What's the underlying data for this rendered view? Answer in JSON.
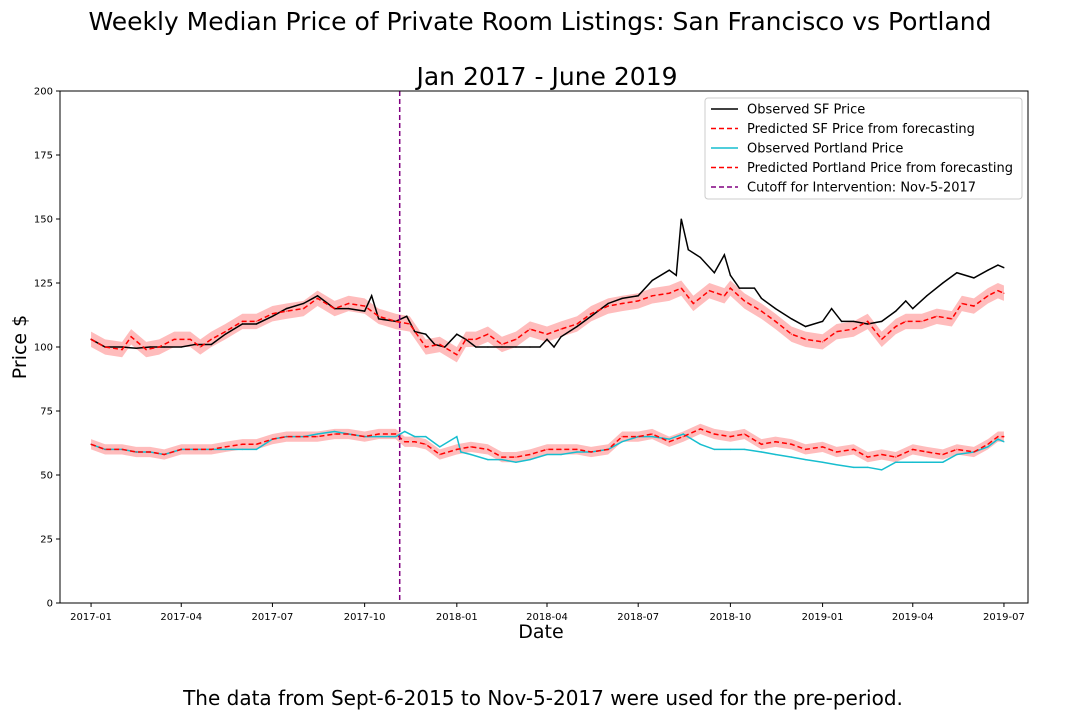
{
  "chart_data": {
    "type": "line",
    "title": "Weekly Median Price of Private Room Listings: San Francisco vs Portland",
    "subtitle": "Jan 2017 - June 2019",
    "xlabel": "Date",
    "ylabel": "Price $",
    "caption": "The data from Sept-6-2015 to Nov-5-2017 were used for the pre-period.",
    "xlim": [
      "2016-12-01",
      "2019-07-25"
    ],
    "ylim": [
      0,
      200
    ],
    "x_ticks": [
      "2017-01",
      "2017-04",
      "2017-07",
      "2017-10",
      "2018-01",
      "2018-04",
      "2018-07",
      "2018-10",
      "2019-01",
      "2019-04",
      "2019-07"
    ],
    "y_ticks": [
      0,
      25,
      50,
      75,
      100,
      125,
      150,
      175,
      200
    ],
    "grid": false,
    "legend_position": "top-right",
    "colors": {
      "sf_observed": "#000000",
      "sf_predicted": "#ff0000",
      "pdx_observed": "#17becf",
      "pdx_predicted": "#ff0000",
      "band": "#ffb0b0",
      "cutoff": "#800080"
    },
    "cutoff": {
      "label": "Cutoff for Intervention: Nov-5-2017",
      "date": "2017-11-05"
    },
    "series": [
      {
        "key": "sf_observed",
        "name": "Observed SF Price",
        "style": "solid",
        "points": [
          [
            "2017-01-01",
            103
          ],
          [
            "2017-01-15",
            100
          ],
          [
            "2017-02-01",
            100
          ],
          [
            "2017-02-15",
            99.5
          ],
          [
            "2017-03-01",
            100
          ],
          [
            "2017-03-15",
            100
          ],
          [
            "2017-04-01",
            100
          ],
          [
            "2017-04-15",
            101
          ],
          [
            "2017-05-01",
            101
          ],
          [
            "2017-05-15",
            105
          ],
          [
            "2017-06-01",
            109
          ],
          [
            "2017-06-15",
            109
          ],
          [
            "2017-07-01",
            112
          ],
          [
            "2017-07-15",
            115
          ],
          [
            "2017-08-01",
            117
          ],
          [
            "2017-08-15",
            120
          ],
          [
            "2017-09-01",
            115
          ],
          [
            "2017-09-15",
            115
          ],
          [
            "2017-10-01",
            114
          ],
          [
            "2017-10-08",
            120
          ],
          [
            "2017-10-15",
            111
          ],
          [
            "2017-11-01",
            110
          ],
          [
            "2017-11-12",
            112
          ],
          [
            "2017-11-20",
            106
          ],
          [
            "2017-12-01",
            105
          ],
          [
            "2017-12-10",
            101
          ],
          [
            "2017-12-20",
            100
          ],
          [
            "2018-01-01",
            105
          ],
          [
            "2018-01-10",
            103
          ],
          [
            "2018-01-20",
            100
          ],
          [
            "2018-02-01",
            100
          ],
          [
            "2018-02-15",
            100
          ],
          [
            "2018-03-01",
            100
          ],
          [
            "2018-03-15",
            100
          ],
          [
            "2018-03-25",
            100
          ],
          [
            "2018-04-01",
            103
          ],
          [
            "2018-04-08",
            100
          ],
          [
            "2018-04-15",
            104
          ],
          [
            "2018-05-01",
            108
          ],
          [
            "2018-05-15",
            112
          ],
          [
            "2018-06-01",
            117
          ],
          [
            "2018-06-15",
            119
          ],
          [
            "2018-07-01",
            120
          ],
          [
            "2018-07-15",
            126
          ],
          [
            "2018-08-01",
            130
          ],
          [
            "2018-08-08",
            128
          ],
          [
            "2018-08-13",
            150
          ],
          [
            "2018-08-20",
            138
          ],
          [
            "2018-09-01",
            135
          ],
          [
            "2018-09-15",
            129
          ],
          [
            "2018-09-25",
            136
          ],
          [
            "2018-10-01",
            128
          ],
          [
            "2018-10-10",
            123
          ],
          [
            "2018-10-25",
            123
          ],
          [
            "2018-11-01",
            119
          ],
          [
            "2018-11-15",
            115
          ],
          [
            "2018-12-01",
            111
          ],
          [
            "2018-12-15",
            108
          ],
          [
            "2019-01-01",
            110
          ],
          [
            "2019-01-10",
            115
          ],
          [
            "2019-01-20",
            110
          ],
          [
            "2019-02-01",
            110
          ],
          [
            "2019-02-15",
            109
          ],
          [
            "2019-03-01",
            110
          ],
          [
            "2019-03-15",
            114
          ],
          [
            "2019-03-25",
            118
          ],
          [
            "2019-04-01",
            115
          ],
          [
            "2019-04-15",
            120
          ],
          [
            "2019-05-01",
            125
          ],
          [
            "2019-05-15",
            129
          ],
          [
            "2019-06-01",
            127
          ],
          [
            "2019-06-15",
            130
          ],
          [
            "2019-06-25",
            132
          ],
          [
            "2019-07-01",
            131
          ]
        ]
      },
      {
        "key": "sf_predicted",
        "name": "Predicted SF Price from forecasting",
        "style": "dashed",
        "band": 3,
        "points": [
          [
            "2017-01-01",
            103
          ],
          [
            "2017-01-15",
            100
          ],
          [
            "2017-02-01",
            99
          ],
          [
            "2017-02-10",
            104
          ],
          [
            "2017-02-25",
            99
          ],
          [
            "2017-03-10",
            100
          ],
          [
            "2017-03-25",
            103
          ],
          [
            "2017-04-10",
            103
          ],
          [
            "2017-04-20",
            100
          ],
          [
            "2017-05-01",
            103
          ],
          [
            "2017-05-15",
            106
          ],
          [
            "2017-06-01",
            110
          ],
          [
            "2017-06-15",
            110
          ],
          [
            "2017-07-01",
            113
          ],
          [
            "2017-07-15",
            114
          ],
          [
            "2017-08-01",
            115
          ],
          [
            "2017-08-15",
            119
          ],
          [
            "2017-09-01",
            115
          ],
          [
            "2017-09-15",
            117
          ],
          [
            "2017-10-01",
            116
          ],
          [
            "2017-10-15",
            112
          ],
          [
            "2017-11-01",
            110
          ],
          [
            "2017-11-15",
            109
          ],
          [
            "2017-12-01",
            100
          ],
          [
            "2017-12-15",
            101
          ],
          [
            "2018-01-01",
            97
          ],
          [
            "2018-01-10",
            103
          ],
          [
            "2018-01-20",
            103
          ],
          [
            "2018-02-01",
            105
          ],
          [
            "2018-02-15",
            101
          ],
          [
            "2018-03-01",
            103
          ],
          [
            "2018-03-15",
            107
          ],
          [
            "2018-04-01",
            105
          ],
          [
            "2018-04-15",
            107
          ],
          [
            "2018-05-01",
            109
          ],
          [
            "2018-05-15",
            113
          ],
          [
            "2018-06-01",
            116
          ],
          [
            "2018-06-15",
            117
          ],
          [
            "2018-07-01",
            118
          ],
          [
            "2018-07-15",
            120
          ],
          [
            "2018-08-01",
            121
          ],
          [
            "2018-08-13",
            123
          ],
          [
            "2018-08-25",
            117
          ],
          [
            "2018-09-10",
            122
          ],
          [
            "2018-09-25",
            120
          ],
          [
            "2018-10-01",
            123
          ],
          [
            "2018-10-15",
            118
          ],
          [
            "2018-11-01",
            114
          ],
          [
            "2018-11-15",
            110
          ],
          [
            "2018-12-01",
            105
          ],
          [
            "2018-12-15",
            103
          ],
          [
            "2019-01-01",
            102
          ],
          [
            "2019-01-15",
            106
          ],
          [
            "2019-02-01",
            107
          ],
          [
            "2019-02-15",
            110
          ],
          [
            "2019-03-01",
            103
          ],
          [
            "2019-03-15",
            108
          ],
          [
            "2019-03-25",
            110
          ],
          [
            "2019-04-10",
            110
          ],
          [
            "2019-04-25",
            112
          ],
          [
            "2019-05-10",
            111
          ],
          [
            "2019-05-20",
            117
          ],
          [
            "2019-06-01",
            116
          ],
          [
            "2019-06-15",
            120
          ],
          [
            "2019-06-25",
            122
          ],
          [
            "2019-07-01",
            121
          ]
        ]
      },
      {
        "key": "pdx_observed",
        "name": "Observed Portland Price",
        "style": "solid",
        "points": [
          [
            "2017-01-01",
            62
          ],
          [
            "2017-01-15",
            60
          ],
          [
            "2017-02-01",
            60
          ],
          [
            "2017-02-15",
            59
          ],
          [
            "2017-03-01",
            59
          ],
          [
            "2017-03-15",
            58
          ],
          [
            "2017-04-01",
            60
          ],
          [
            "2017-04-15",
            60
          ],
          [
            "2017-05-01",
            60
          ],
          [
            "2017-05-15",
            60
          ],
          [
            "2017-06-01",
            60
          ],
          [
            "2017-06-15",
            60
          ],
          [
            "2017-07-01",
            64
          ],
          [
            "2017-07-15",
            65
          ],
          [
            "2017-08-01",
            65
          ],
          [
            "2017-08-15",
            66
          ],
          [
            "2017-09-01",
            67
          ],
          [
            "2017-09-15",
            66
          ],
          [
            "2017-10-01",
            65
          ],
          [
            "2017-10-15",
            65
          ],
          [
            "2017-11-01",
            65
          ],
          [
            "2017-11-10",
            67
          ],
          [
            "2017-11-20",
            65
          ],
          [
            "2017-12-01",
            65
          ],
          [
            "2017-12-15",
            61
          ],
          [
            "2018-01-01",
            65
          ],
          [
            "2018-01-05",
            59
          ],
          [
            "2018-01-15",
            58
          ],
          [
            "2018-02-01",
            56
          ],
          [
            "2018-02-15",
            56
          ],
          [
            "2018-03-01",
            55
          ],
          [
            "2018-03-15",
            56
          ],
          [
            "2018-04-01",
            58
          ],
          [
            "2018-04-15",
            58
          ],
          [
            "2018-05-01",
            59
          ],
          [
            "2018-05-15",
            59
          ],
          [
            "2018-06-01",
            60
          ],
          [
            "2018-06-15",
            63
          ],
          [
            "2018-07-01",
            65
          ],
          [
            "2018-07-15",
            65
          ],
          [
            "2018-08-01",
            64
          ],
          [
            "2018-08-15",
            66
          ],
          [
            "2018-09-01",
            62
          ],
          [
            "2018-09-15",
            60
          ],
          [
            "2018-10-01",
            60
          ],
          [
            "2018-10-15",
            60
          ],
          [
            "2018-11-01",
            59
          ],
          [
            "2018-11-15",
            58
          ],
          [
            "2018-12-01",
            57
          ],
          [
            "2018-12-15",
            56
          ],
          [
            "2019-01-01",
            55
          ],
          [
            "2019-01-15",
            54
          ],
          [
            "2019-02-01",
            53
          ],
          [
            "2019-02-15",
            53
          ],
          [
            "2019-03-01",
            52
          ],
          [
            "2019-03-15",
            55
          ],
          [
            "2019-04-01",
            55
          ],
          [
            "2019-04-15",
            55
          ],
          [
            "2019-05-01",
            55
          ],
          [
            "2019-05-15",
            58
          ],
          [
            "2019-06-01",
            59
          ],
          [
            "2019-06-15",
            61
          ],
          [
            "2019-06-25",
            64
          ],
          [
            "2019-07-01",
            63
          ]
        ]
      },
      {
        "key": "pdx_predicted",
        "name": "Predicted Portland Price from forecasting",
        "style": "dashed",
        "band": 2,
        "points": [
          [
            "2017-01-01",
            62
          ],
          [
            "2017-01-15",
            60
          ],
          [
            "2017-02-01",
            60
          ],
          [
            "2017-02-15",
            59
          ],
          [
            "2017-03-01",
            59
          ],
          [
            "2017-03-15",
            58
          ],
          [
            "2017-04-01",
            60
          ],
          [
            "2017-04-15",
            60
          ],
          [
            "2017-05-01",
            60
          ],
          [
            "2017-05-15",
            61
          ],
          [
            "2017-06-01",
            62
          ],
          [
            "2017-06-15",
            62
          ],
          [
            "2017-07-01",
            64
          ],
          [
            "2017-07-15",
            65
          ],
          [
            "2017-08-01",
            65
          ],
          [
            "2017-08-15",
            65
          ],
          [
            "2017-09-01",
            66
          ],
          [
            "2017-09-15",
            66
          ],
          [
            "2017-10-01",
            65
          ],
          [
            "2017-10-15",
            66
          ],
          [
            "2017-11-01",
            66
          ],
          [
            "2017-11-10",
            63
          ],
          [
            "2017-11-20",
            63
          ],
          [
            "2017-12-01",
            62
          ],
          [
            "2017-12-15",
            58
          ],
          [
            "2018-01-01",
            60
          ],
          [
            "2018-01-15",
            61
          ],
          [
            "2018-02-01",
            60
          ],
          [
            "2018-02-15",
            57
          ],
          [
            "2018-03-01",
            57
          ],
          [
            "2018-03-15",
            58
          ],
          [
            "2018-04-01",
            60
          ],
          [
            "2018-04-15",
            60
          ],
          [
            "2018-05-01",
            60
          ],
          [
            "2018-05-15",
            59
          ],
          [
            "2018-06-01",
            60
          ],
          [
            "2018-06-15",
            65
          ],
          [
            "2018-07-01",
            65
          ],
          [
            "2018-07-15",
            66
          ],
          [
            "2018-08-01",
            63
          ],
          [
            "2018-08-15",
            65
          ],
          [
            "2018-09-01",
            68
          ],
          [
            "2018-09-15",
            66
          ],
          [
            "2018-10-01",
            65
          ],
          [
            "2018-10-15",
            66
          ],
          [
            "2018-11-01",
            62
          ],
          [
            "2018-11-15",
            63
          ],
          [
            "2018-12-01",
            62
          ],
          [
            "2018-12-15",
            60
          ],
          [
            "2019-01-01",
            61
          ],
          [
            "2019-01-15",
            59
          ],
          [
            "2019-02-01",
            60
          ],
          [
            "2019-02-15",
            57
          ],
          [
            "2019-03-01",
            58
          ],
          [
            "2019-03-15",
            57
          ],
          [
            "2019-04-01",
            60
          ],
          [
            "2019-04-15",
            59
          ],
          [
            "2019-05-01",
            58
          ],
          [
            "2019-05-15",
            60
          ],
          [
            "2019-06-01",
            59
          ],
          [
            "2019-06-15",
            62
          ],
          [
            "2019-06-25",
            65
          ],
          [
            "2019-07-01",
            65
          ]
        ]
      }
    ]
  }
}
